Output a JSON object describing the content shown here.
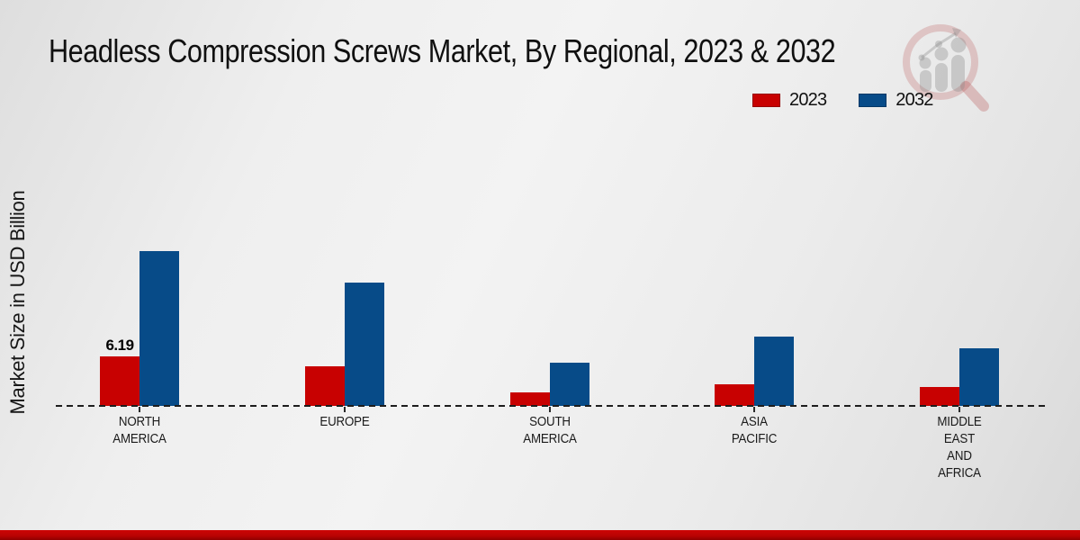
{
  "chart_data": {
    "type": "bar",
    "title": "Headless Compression Screws Market, By Regional, 2023 & 2032",
    "xlabel": "",
    "ylabel": "Market Size in USD Billion",
    "categories": [
      "NORTH\nAMERICA",
      "EUROPE",
      "SOUTH\nAMERICA",
      "ASIA\nPACIFIC",
      "MIDDLE\nEAST\nAND\nAFRICA"
    ],
    "series": [
      {
        "name": "2023",
        "color": "#C80101",
        "values": [
          6.19,
          5.0,
          1.7,
          2.7,
          2.4
        ]
      },
      {
        "name": "2032",
        "color": "#074B88",
        "values": [
          19.4,
          15.4,
          5.4,
          8.7,
          7.2
        ]
      }
    ],
    "annotations": [
      {
        "series": "2023",
        "category_index": 0,
        "text": "6.19"
      }
    ],
    "ylim": [
      0,
      25
    ],
    "grid": false,
    "legend_position": "upper right",
    "baseline_style": "dashed",
    "y_axis_ticks_visible": false
  },
  "watermark_icon": "magnifier-bar-chart-logo",
  "footer": {
    "accent_color": "#B80303"
  }
}
